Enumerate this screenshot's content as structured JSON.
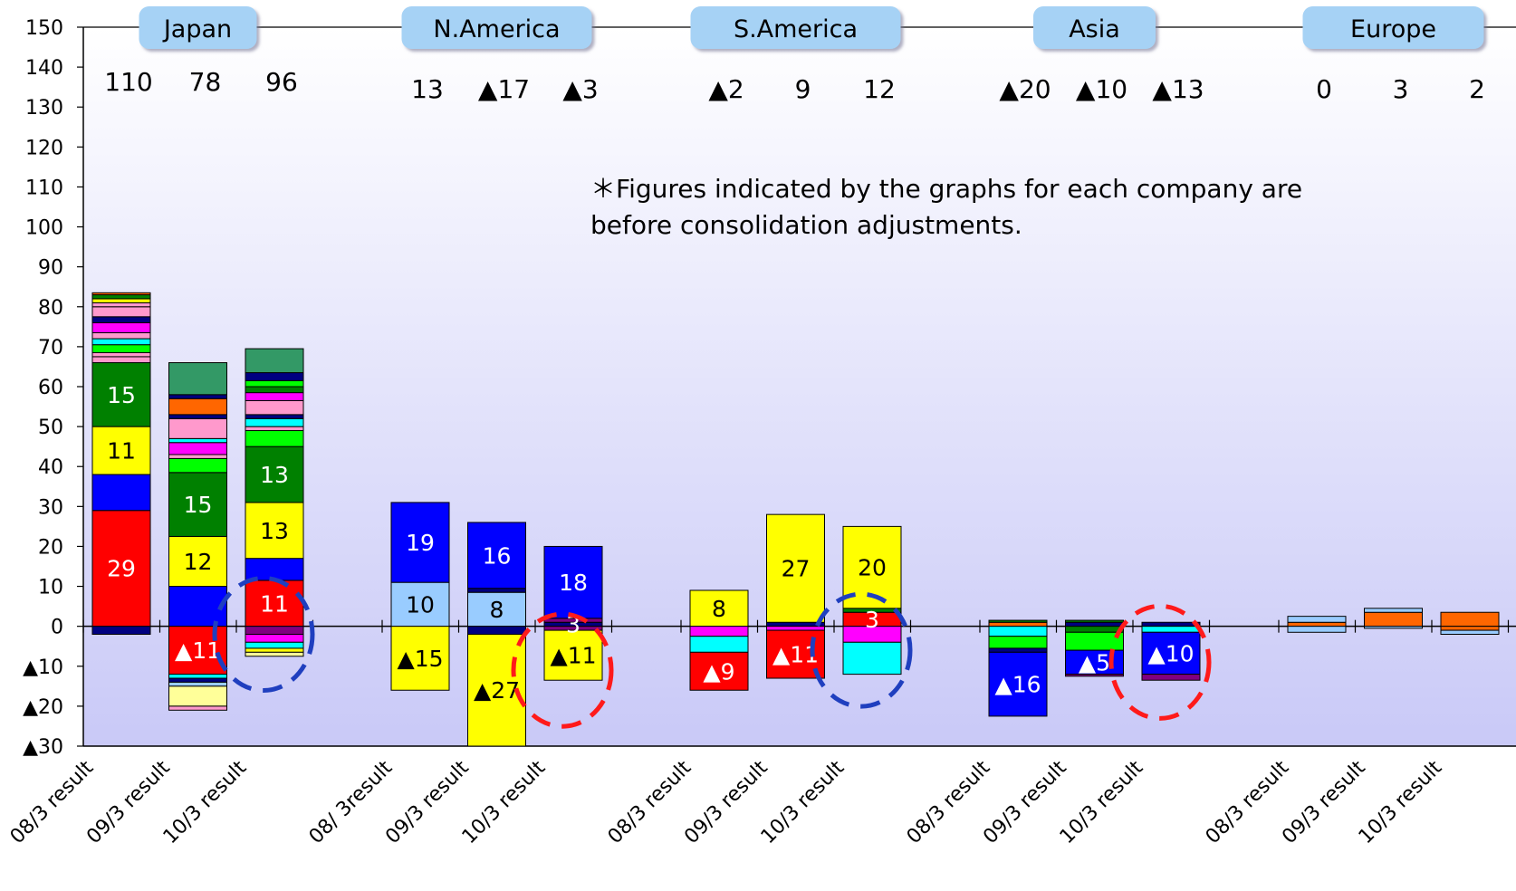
{
  "chart_data": {
    "type": "bar",
    "stacked": true,
    "note": "＊Figures indicated by the graphs for each company are before consolidation adjustments.",
    "ylim": [
      -30,
      150
    ],
    "yticks": [
      150,
      140,
      130,
      120,
      110,
      100,
      90,
      80,
      70,
      60,
      50,
      40,
      30,
      20,
      10,
      0,
      -10,
      -20,
      -30
    ],
    "ytick_labels": [
      "150",
      "140",
      "130",
      "120",
      "110",
      "100",
      "90",
      "80",
      "70",
      "60",
      "50",
      "40",
      "30",
      "20",
      "10",
      "0",
      "▲10",
      "▲20",
      "▲30"
    ],
    "grid": false,
    "colors": {
      "red": "#ff0000",
      "blue": "#0000ff",
      "yellow": "#ffff00",
      "green": "#008000",
      "lime": "#00ff00",
      "lightblue": "#99ccff",
      "cyan": "#00ffff",
      "magenta": "#ff00ff",
      "pink": "#ff99cc",
      "orange": "#ff6600",
      "teal": "#339966",
      "navy": "#000080",
      "purple": "#800080",
      "lightyellow": "#ffff99",
      "black": "#000000",
      "plot_top": "#ffffff",
      "plot_bottom": "#c9c9f7",
      "region_label_bg": "#a6d2f5"
    },
    "regions": [
      {
        "name": "Japan",
        "totals": [
          "110",
          "78",
          "96"
        ],
        "categories": [
          "08/3 result",
          "09/3 result",
          "10/3 result"
        ],
        "bars": [
          {
            "segments": [
              {
                "value": 29,
                "color": "red",
                "label": "29"
              },
              {
                "value": 9,
                "color": "blue",
                "label": ""
              },
              {
                "value": 12,
                "color": "yellow",
                "label": "11"
              },
              {
                "value": 16,
                "color": "green",
                "label": "15"
              },
              {
                "value": 1.5,
                "color": "pink",
                "label": ""
              },
              {
                "value": 1,
                "color": "pink",
                "label": ""
              },
              {
                "value": 2,
                "color": "lime",
                "label": ""
              },
              {
                "value": 1.5,
                "color": "cyan",
                "label": ""
              },
              {
                "value": 1.5,
                "color": "pink",
                "label": ""
              },
              {
                "value": 2.5,
                "color": "magenta",
                "label": ""
              },
              {
                "value": 1.5,
                "color": "navy",
                "label": ""
              },
              {
                "value": 2.5,
                "color": "pink",
                "label": ""
              },
              {
                "value": 1,
                "color": "pink",
                "label": ""
              },
              {
                "value": 1,
                "color": "yellow",
                "label": ""
              },
              {
                "value": 1,
                "color": "green",
                "label": ""
              },
              {
                "value": 0.5,
                "color": "orange",
                "label": ""
              },
              {
                "value": -2,
                "color": "navy",
                "label": ""
              }
            ]
          },
          {
            "segments": [
              {
                "value": 10,
                "color": "blue",
                "label": ""
              },
              {
                "value": 12.5,
                "color": "yellow",
                "label": "12"
              },
              {
                "value": 16,
                "color": "green",
                "label": "15"
              },
              {
                "value": 3.5,
                "color": "lime",
                "label": ""
              },
              {
                "value": 1,
                "color": "pink",
                "label": ""
              },
              {
                "value": 3,
                "color": "magenta",
                "label": ""
              },
              {
                "value": 1,
                "color": "cyan",
                "label": ""
              },
              {
                "value": 5,
                "color": "pink",
                "label": ""
              },
              {
                "value": 1,
                "color": "navy",
                "label": ""
              },
              {
                "value": 4,
                "color": "orange",
                "label": ""
              },
              {
                "value": 1,
                "color": "navy",
                "label": ""
              },
              {
                "value": 8,
                "color": "teal",
                "label": ""
              },
              {
                "value": -12,
                "color": "red",
                "label": "▲11"
              },
              {
                "value": -1,
                "color": "cyan",
                "label": ""
              },
              {
                "value": -1,
                "color": "navy",
                "label": ""
              },
              {
                "value": -1,
                "color": "lightblue",
                "label": ""
              },
              {
                "value": -5,
                "color": "lightyellow",
                "label": ""
              },
              {
                "value": -1,
                "color": "pink",
                "label": ""
              }
            ]
          },
          {
            "segments": [
              {
                "value": 11.5,
                "color": "red",
                "label": "11"
              },
              {
                "value": 5.5,
                "color": "blue",
                "label": ""
              },
              {
                "value": 14,
                "color": "yellow",
                "label": "13"
              },
              {
                "value": 14,
                "color": "green",
                "label": "13"
              },
              {
                "value": 4,
                "color": "lime",
                "label": ""
              },
              {
                "value": 1,
                "color": "pink",
                "label": ""
              },
              {
                "value": 2,
                "color": "cyan",
                "label": ""
              },
              {
                "value": 1,
                "color": "navy",
                "label": ""
              },
              {
                "value": 3.5,
                "color": "pink",
                "label": ""
              },
              {
                "value": 2,
                "color": "magenta",
                "label": ""
              },
              {
                "value": 1.5,
                "color": "green",
                "label": ""
              },
              {
                "value": 1.5,
                "color": "lime",
                "label": ""
              },
              {
                "value": 2,
                "color": "navy",
                "label": ""
              },
              {
                "value": 6,
                "color": "teal",
                "label": ""
              },
              {
                "value": -2,
                "color": "purple",
                "label": ""
              },
              {
                "value": -2,
                "color": "magenta",
                "label": ""
              },
              {
                "value": -1.5,
                "color": "cyan",
                "label": ""
              },
              {
                "value": -1,
                "color": "yellow",
                "label": ""
              },
              {
                "value": -1,
                "color": "lightyellow",
                "label": ""
              }
            ]
          }
        ]
      },
      {
        "name": "N.America",
        "totals": [
          "13",
          "▲17",
          "▲3"
        ],
        "categories": [
          "08/ 3result",
          "09/3 result",
          "10/3 result"
        ],
        "bars": [
          {
            "segments": [
              {
                "value": 11,
                "color": "lightblue",
                "label": "10"
              },
              {
                "value": 20,
                "color": "blue",
                "label": "19"
              },
              {
                "value": -16,
                "color": "yellow",
                "label": "▲15"
              }
            ]
          },
          {
            "segments": [
              {
                "value": 8.5,
                "color": "lightblue",
                "label": "8"
              },
              {
                "value": 1,
                "color": "navy",
                "label": ""
              },
              {
                "value": 16.5,
                "color": "blue",
                "label": "16"
              },
              {
                "value": -2,
                "color": "navy",
                "label": ""
              },
              {
                "value": -28,
                "color": "yellow",
                "label": "▲27"
              }
            ]
          },
          {
            "segments": [
              {
                "value": 1,
                "color": "navy",
                "label": "3"
              },
              {
                "value": 1,
                "color": "purple",
                "label": ""
              },
              {
                "value": 18,
                "color": "blue",
                "label": "18"
              },
              {
                "value": -1,
                "color": "purple",
                "label": ""
              },
              {
                "value": -12.5,
                "color": "yellow",
                "label": "▲11"
              }
            ]
          }
        ]
      },
      {
        "name": "S.America",
        "totals": [
          "▲2",
          "9",
          "12"
        ],
        "categories": [
          "08/3 result",
          "09/3 result",
          "10/3 result"
        ],
        "bars": [
          {
            "segments": [
              {
                "value": 9,
                "color": "yellow",
                "label": "8"
              },
              {
                "value": -2.5,
                "color": "magenta",
                "label": ""
              },
              {
                "value": -4,
                "color": "cyan",
                "label": ""
              },
              {
                "value": -9.5,
                "color": "red",
                "label": "▲9"
              }
            ]
          },
          {
            "segments": [
              {
                "value": 1,
                "color": "navy",
                "label": ""
              },
              {
                "value": 27,
                "color": "yellow",
                "label": "27"
              },
              {
                "value": -1,
                "color": "magenta",
                "label": ""
              },
              {
                "value": -12,
                "color": "red",
                "label": "▲11"
              }
            ]
          },
          {
            "segments": [
              {
                "value": 3.5,
                "color": "red",
                "label": "3"
              },
              {
                "value": 1,
                "color": "green",
                "label": ""
              },
              {
                "value": 20.5,
                "color": "yellow",
                "label": "20"
              },
              {
                "value": -4,
                "color": "magenta",
                "label": ""
              },
              {
                "value": -8,
                "color": "cyan",
                "label": ""
              }
            ]
          }
        ]
      },
      {
        "name": "Asia",
        "totals": [
          "▲20",
          "▲10",
          "▲13"
        ],
        "categories": [
          "08/3 result",
          "09/3 result",
          "10/3 result"
        ],
        "bars": [
          {
            "segments": [
              {
                "value": 1,
                "color": "orange",
                "label": ""
              },
              {
                "value": 0.5,
                "color": "green",
                "label": ""
              },
              {
                "value": -2.5,
                "color": "cyan",
                "label": ""
              },
              {
                "value": -3,
                "color": "lime",
                "label": ""
              },
              {
                "value": -1,
                "color": "navy",
                "label": ""
              },
              {
                "value": -16,
                "color": "blue",
                "label": "▲16"
              }
            ]
          },
          {
            "segments": [
              {
                "value": 1,
                "color": "navy",
                "label": ""
              },
              {
                "value": 0.5,
                "color": "green",
                "label": ""
              },
              {
                "value": -1.5,
                "color": "green",
                "label": ""
              },
              {
                "value": -4.5,
                "color": "lime",
                "label": ""
              },
              {
                "value": -6,
                "color": "blue",
                "label": "▲5"
              },
              {
                "value": -0.5,
                "color": "purple",
                "label": ""
              }
            ]
          },
          {
            "segments": [
              {
                "value": 1,
                "color": "navy",
                "label": ""
              },
              {
                "value": -1.5,
                "color": "cyan",
                "label": ""
              },
              {
                "value": -10.5,
                "color": "blue",
                "label": "▲10"
              },
              {
                "value": -1.5,
                "color": "purple",
                "label": ""
              }
            ]
          }
        ]
      },
      {
        "name": "Europe",
        "totals": [
          "0",
          "3",
          "2"
        ],
        "categories": [
          "08/3 result",
          "09/3 result",
          "10/3 result"
        ],
        "bars": [
          {
            "segments": [
              {
                "value": 1,
                "color": "orange",
                "label": ""
              },
              {
                "value": 1.5,
                "color": "lightblue",
                "label": ""
              },
              {
                "value": -1.5,
                "color": "lightblue",
                "label": ""
              }
            ]
          },
          {
            "segments": [
              {
                "value": 3.5,
                "color": "orange",
                "label": ""
              },
              {
                "value": 1,
                "color": "lightblue",
                "label": ""
              },
              {
                "value": -0.5,
                "color": "lightblue",
                "label": ""
              }
            ]
          },
          {
            "segments": [
              {
                "value": 3.5,
                "color": "orange",
                "label": ""
              },
              {
                "value": -1,
                "color": "orange",
                "label": ""
              },
              {
                "value": -1,
                "color": "lightblue",
                "label": ""
              }
            ]
          }
        ]
      }
    ],
    "highlights": [
      {
        "region": 0,
        "bar": 2,
        "color": "#1f3fbf",
        "y_center": -2
      },
      {
        "region": 1,
        "bar": 2,
        "color": "#ff1a1a",
        "y_center": -11
      },
      {
        "region": 2,
        "bar": 2,
        "color": "#1f3fbf",
        "y_center": -6
      },
      {
        "region": 3,
        "bar": 2,
        "color": "#ff1a1a",
        "y_center": -9
      }
    ]
  }
}
